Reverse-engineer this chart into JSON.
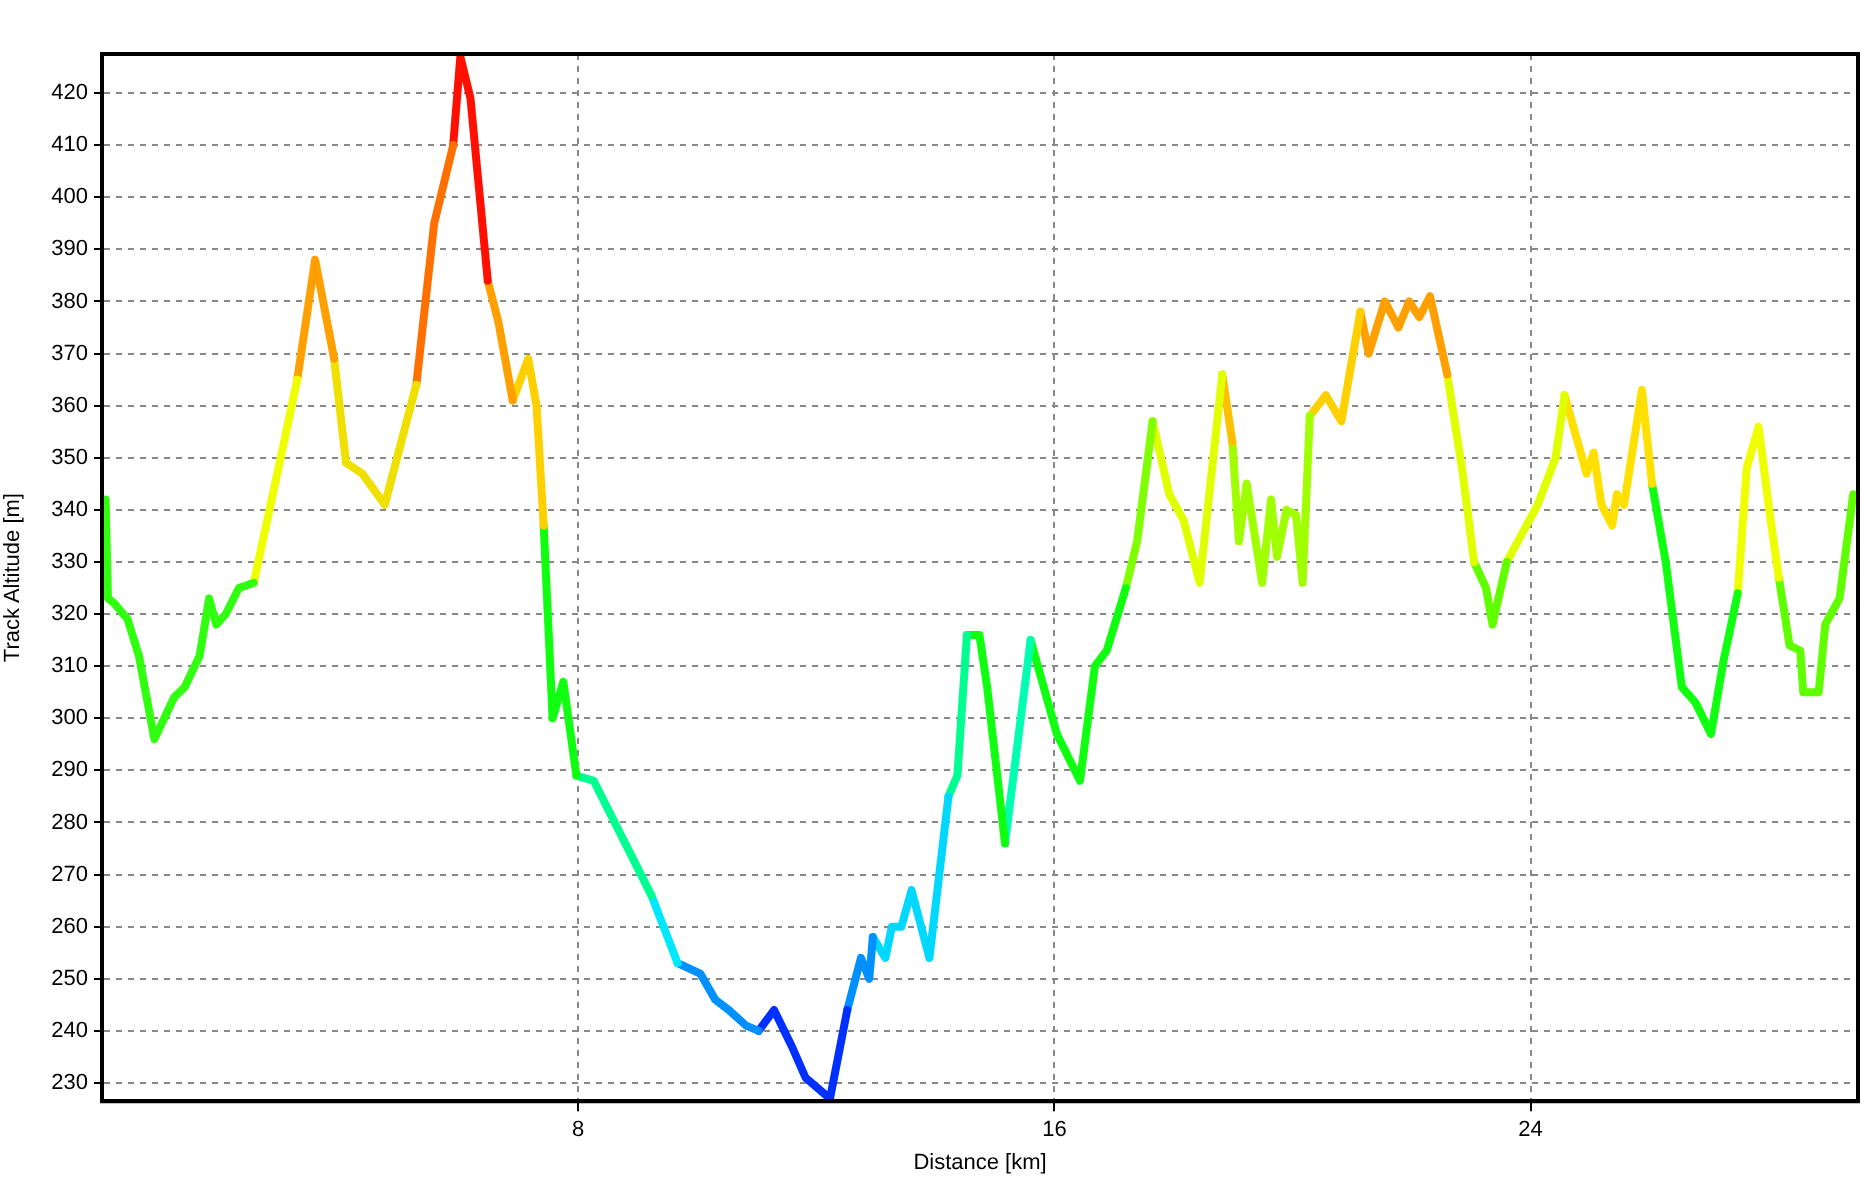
{
  "chart_data": {
    "type": "line",
    "xlabel": "Distance [km]",
    "ylabel": "Track Altitude [m]",
    "xlim": [
      0,
      29.5
    ],
    "xticks": [
      8,
      16,
      24
    ],
    "ylim": [
      226.5,
      427.5
    ],
    "yticks": [
      230,
      240,
      250,
      260,
      270,
      280,
      290,
      300,
      310,
      320,
      330,
      340,
      350,
      360,
      370,
      380,
      390,
      400,
      410,
      420
    ],
    "grid": true,
    "legend": false,
    "marker": "none",
    "line_style": "solid",
    "series": [
      {
        "color": "#30ff10",
        "x": [
          0.06,
          0.1,
          0.21,
          0.43,
          0.62,
          0.88,
          1.21,
          1.39,
          1.64,
          1.8,
          1.92,
          2.08,
          2.3,
          2.55
        ],
        "values": [
          342,
          323,
          322,
          319,
          312,
          296,
          304,
          306,
          312,
          323,
          318,
          320,
          325,
          326
        ]
      },
      {
        "color": "#f0ff00",
        "x": [
          2.55,
          3.02,
          3.28
        ],
        "values": [
          326,
          351,
          365
        ]
      },
      {
        "color": "#ffa000",
        "x": [
          3.28,
          3.58,
          3.9
        ],
        "values": [
          365,
          388,
          369
        ]
      },
      {
        "color": "#f0e000",
        "x": [
          3.9,
          4.1,
          4.37,
          4.75,
          5.28
        ],
        "values": [
          369,
          349,
          347,
          341,
          364
        ]
      },
      {
        "color": "#ff7000",
        "x": [
          5.28,
          5.58,
          5.9
        ],
        "values": [
          364,
          395,
          410
        ]
      },
      {
        "color": "#ff1000",
        "x": [
          5.9,
          6.02,
          6.19,
          6.48
        ],
        "values": [
          410,
          427,
          419,
          384
        ]
      },
      {
        "color": "#ffa000",
        "x": [
          6.48,
          6.66,
          6.9
        ],
        "values": [
          384,
          376,
          361
        ]
      },
      {
        "color": "#ffd000",
        "x": [
          6.9,
          7.16,
          7.3,
          7.42
        ],
        "values": [
          361,
          369,
          360,
          337
        ]
      },
      {
        "color": "#10ff10",
        "x": [
          7.42,
          7.57,
          7.75,
          7.97
        ],
        "values": [
          337,
          300,
          307,
          289
        ]
      },
      {
        "color": "#00ff90",
        "x": [
          7.97,
          8.26,
          9.23
        ],
        "values": [
          289,
          288,
          266
        ]
      },
      {
        "color": "#00e8ff",
        "x": [
          9.23,
          9.67
        ],
        "values": [
          266,
          253
        ]
      },
      {
        "color": "#0090ff",
        "x": [
          9.67,
          10.05,
          10.3,
          10.53,
          10.82,
          11.03
        ],
        "values": [
          253,
          251,
          246,
          244,
          241,
          240
        ]
      },
      {
        "color": "#0030ff",
        "x": [
          11.03,
          11.29,
          11.59,
          11.82,
          12.23,
          12.52
        ],
        "values": [
          240,
          244,
          237,
          231,
          227,
          244
        ]
      },
      {
        "color": "#0090ff",
        "x": [
          12.52,
          12.75,
          12.89,
          12.95
        ],
        "values": [
          244,
          254,
          250,
          258
        ]
      },
      {
        "color": "#00d8ff",
        "x": [
          12.95,
          13.16,
          13.27,
          13.43,
          13.6,
          13.9,
          14.22
        ],
        "values": [
          258,
          254,
          260,
          260,
          267,
          254,
          285
        ]
      },
      {
        "color": "#00ff90",
        "x": [
          14.22,
          14.37,
          14.53
        ],
        "values": [
          285,
          289,
          316
        ]
      },
      {
        "color": "#10ff10",
        "x": [
          14.53,
          14.74,
          14.87,
          15.17
        ],
        "values": [
          316,
          316,
          306,
          276
        ]
      },
      {
        "color": "#00ffb0",
        "x": [
          15.17,
          15.6
        ],
        "values": [
          276,
          315
        ]
      },
      {
        "color": "#10ff10",
        "x": [
          15.6,
          16.04,
          16.43,
          16.68,
          16.88,
          17.2
        ],
        "values": [
          315,
          297,
          288,
          310,
          313,
          325
        ]
      },
      {
        "color": "#80ff00",
        "x": [
          17.2,
          17.39,
          17.65
        ],
        "values": [
          325,
          334,
          357
        ]
      },
      {
        "color": "#e0ff00",
        "x": [
          17.65,
          17.93,
          18.17,
          18.44,
          18.82
        ],
        "values": [
          357,
          343,
          338,
          326,
          366
        ]
      },
      {
        "color": "#ffc000",
        "x": [
          18.82,
          18.99
        ],
        "values": [
          366,
          353
        ]
      },
      {
        "color": "#a0ff00",
        "x": [
          18.99,
          19.1,
          19.23,
          19.49,
          19.64,
          19.74,
          19.9,
          20.06,
          20.17,
          20.29
        ],
        "values": [
          353,
          334,
          345,
          326,
          342,
          331,
          340,
          339,
          326,
          358
        ]
      },
      {
        "color": "#ffd000",
        "x": [
          20.29,
          20.56,
          20.82,
          21.14
        ],
        "values": [
          358,
          362,
          357,
          378
        ]
      },
      {
        "color": "#ffa000",
        "x": [
          21.14,
          21.28,
          21.55,
          21.78,
          21.96,
          22.13,
          22.31,
          22.6
        ],
        "values": [
          378,
          370,
          380,
          375,
          380,
          377,
          381,
          366
        ]
      },
      {
        "color": "#e0ff00",
        "x": [
          22.6,
          22.86,
          23.05
        ],
        "values": [
          366,
          347,
          330
        ]
      },
      {
        "color": "#60ff00",
        "x": [
          23.05,
          23.25,
          23.36,
          23.6
        ],
        "values": [
          330,
          325,
          318,
          330
        ]
      },
      {
        "color": "#e0ff00",
        "x": [
          23.6,
          24.12,
          24.42,
          24.57
        ],
        "values": [
          330,
          341,
          350,
          362
        ]
      },
      {
        "color": "#ffe000",
        "x": [
          24.57,
          24.94,
          25.06,
          25.19,
          25.37,
          25.45,
          25.57,
          25.87,
          26.04
        ],
        "values": [
          362,
          347,
          351,
          341,
          337,
          343,
          341,
          363,
          345
        ]
      },
      {
        "color": "#10ff10",
        "x": [
          26.04,
          26.27,
          26.54,
          26.77,
          27.03,
          27.24,
          27.48
        ],
        "values": [
          345,
          330,
          306,
          303,
          297,
          311,
          324
        ]
      },
      {
        "color": "#f0ff00",
        "x": [
          27.48,
          27.63,
          27.83,
          28.02,
          28.17
        ],
        "values": [
          324,
          348,
          356,
          339,
          327
        ]
      },
      {
        "color": "#60ff00",
        "x": [
          28.17,
          28.35,
          28.53,
          28.58,
          28.84,
          28.95,
          29.19,
          29.42
        ],
        "values": [
          327,
          314,
          313,
          305,
          305,
          318,
          323,
          343
        ]
      }
    ]
  }
}
